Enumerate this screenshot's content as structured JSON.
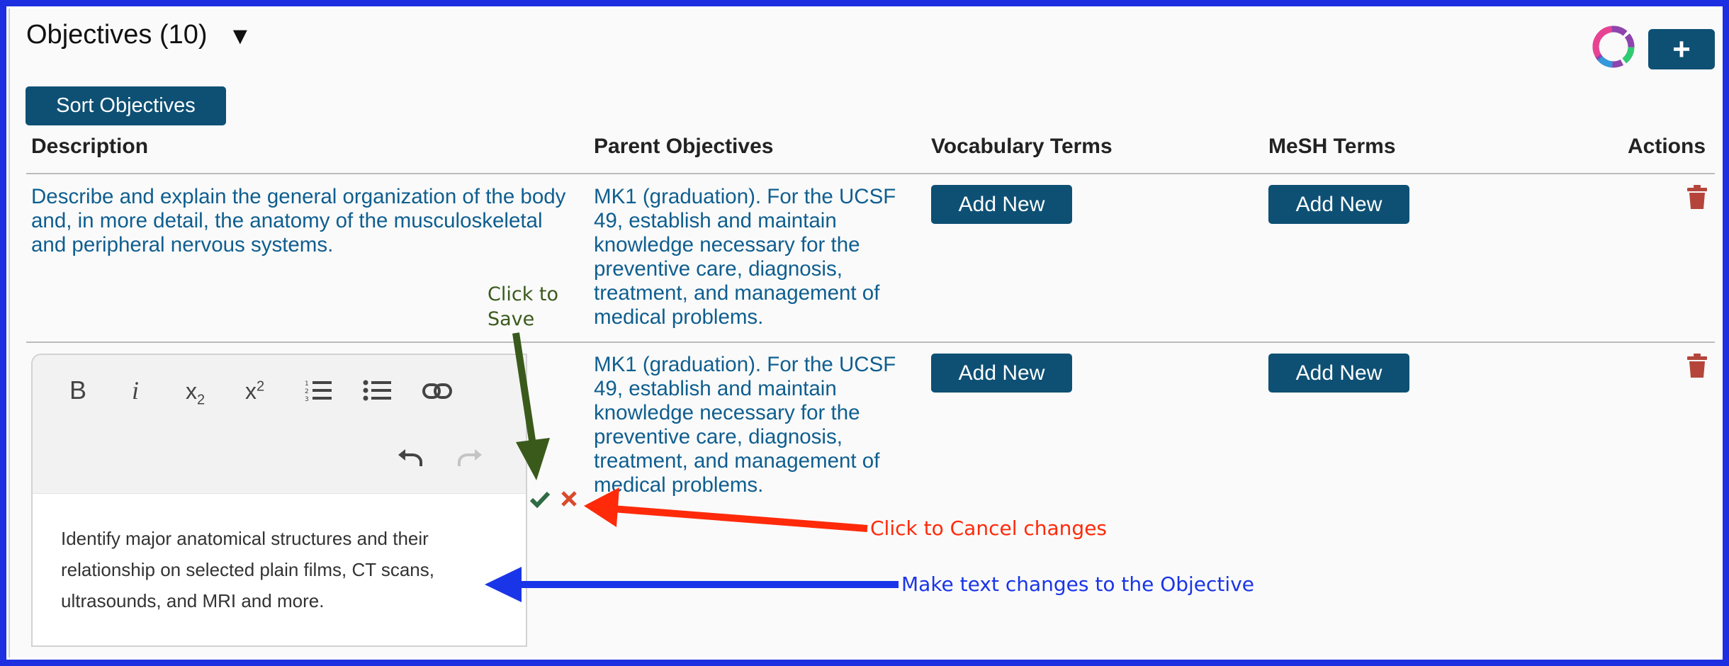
{
  "section": {
    "title": "Objectives (10)",
    "toggle": "▼",
    "add_label": "+",
    "sort_label": "Sort Objectives"
  },
  "table": {
    "headers": {
      "description": "Description",
      "parent": "Parent Objectives",
      "vocab": "Vocabulary Terms",
      "mesh": "MeSH Terms",
      "actions": "Actions"
    },
    "rows": [
      {
        "description": "Describe and explain the general organization of the body and, in more detail, the anatomy of the musculoskeletal and peripheral nervous systems.",
        "parent": "MK1 (graduation). For the UCSF 49, establish and maintain knowledge necessary for the preventive care, diagnosis, treatment, and management of medical problems.",
        "vocab_label": "Add New",
        "mesh_label": "Add New"
      },
      {
        "description": "Identify major anatomical structures and their relationship on selected plain films, CT scans, ultrasounds, and MRI and more.",
        "parent": "MK1 (graduation). For the UCSF 49, establish and maintain knowledge necessary for the preventive care, diagnosis, treatment, and management of medical problems.",
        "vocab_label": "Add New",
        "mesh_label": "Add New"
      }
    ]
  },
  "editor": {
    "bold": "B",
    "italic": "i",
    "subscript_base": "x",
    "subscript_mark": "2",
    "superscript_base": "x",
    "superscript_mark": "2"
  },
  "annotations": {
    "save": "Click to Save",
    "cancel": "Click to Cancel changes",
    "edit": "Make text changes to the Objective"
  },
  "colors": {
    "accent": "#0e5074",
    "link": "#0f5e8f",
    "frame": "#1d2fe0",
    "trash": "#b5453b",
    "save_check": "#2f6b44",
    "cancel_x": "#d94a2b",
    "ann_save": "#3a5a1c",
    "ann_cancel": "#ff2a0a",
    "ann_edit": "#1a35e8"
  }
}
